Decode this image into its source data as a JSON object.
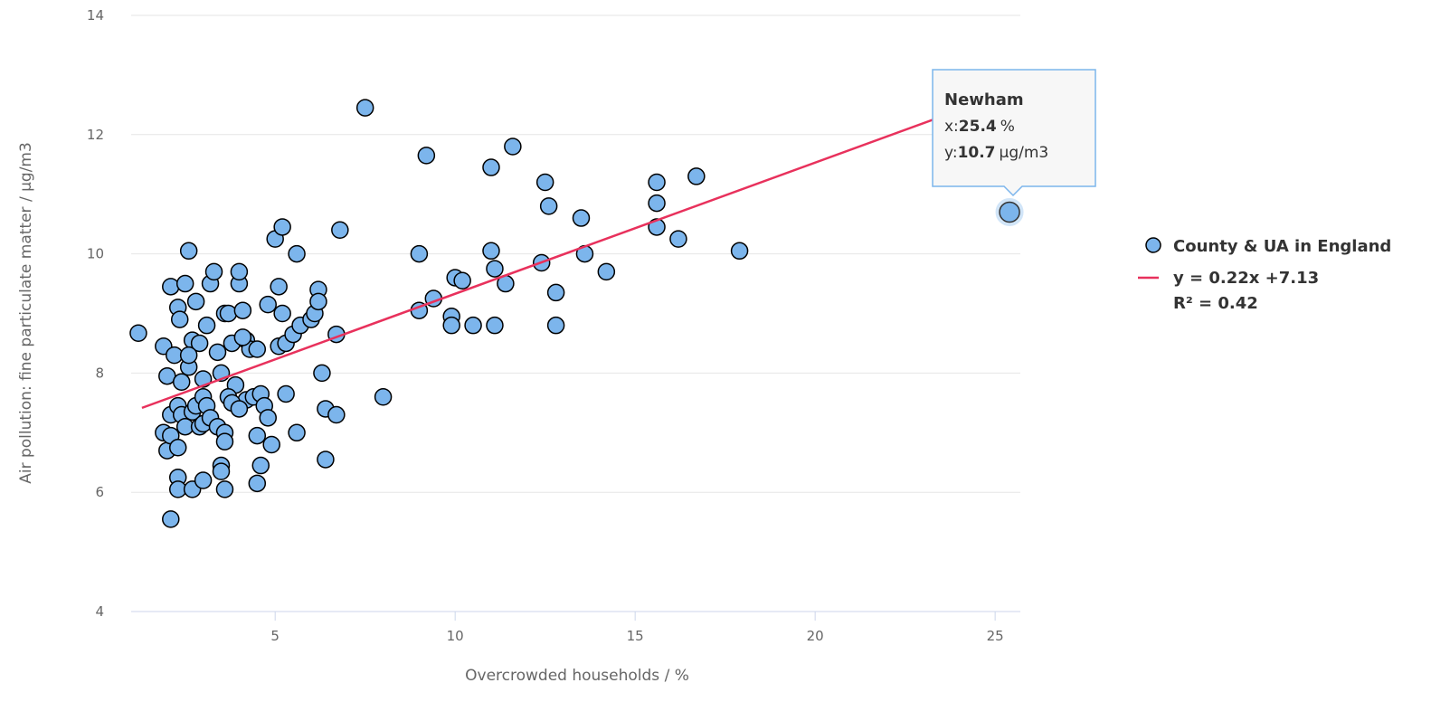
{
  "chart_data": {
    "type": "scatter",
    "xlabel": "Overcrowded households / %",
    "ylabel": "Air pollution: fine particulate matter / µg/m3",
    "xlim": [
      1.0,
      25.7
    ],
    "ylim": [
      4,
      14
    ],
    "x_ticks": [
      5,
      10,
      15,
      20,
      25
    ],
    "y_ticks": [
      4,
      6,
      8,
      10,
      12,
      14
    ],
    "grid": "horizontal",
    "legend_position": "right",
    "colors": {
      "point_fill": "#7cb5ec",
      "point_stroke": "#000000",
      "trend_line": "#e8315c",
      "grid": "#e6e6e6",
      "axis_line": "#ccd6eb",
      "tooltip_border": "#7cb5ec"
    },
    "series": [
      {
        "name": "County & UA in England",
        "points": [
          [
            1.2,
            8.67
          ],
          [
            1.9,
            8.45
          ],
          [
            2.0,
            7.95
          ],
          [
            2.1,
            9.45
          ],
          [
            2.2,
            8.3
          ],
          [
            2.3,
            9.1
          ],
          [
            2.35,
            8.9
          ],
          [
            2.4,
            7.85
          ],
          [
            2.5,
            9.5
          ],
          [
            2.6,
            10.05
          ],
          [
            2.6,
            8.1
          ],
          [
            2.7,
            8.55
          ],
          [
            2.8,
            9.2
          ],
          [
            2.9,
            8.5
          ],
          [
            3.0,
            7.9
          ],
          [
            3.1,
            8.8
          ],
          [
            3.2,
            9.5
          ],
          [
            3.3,
            9.7
          ],
          [
            3.4,
            8.35
          ],
          [
            3.5,
            8.0
          ],
          [
            3.6,
            9.0
          ],
          [
            3.7,
            9.0
          ],
          [
            3.8,
            8.5
          ],
          [
            3.9,
            7.8
          ],
          [
            4.0,
            9.5
          ],
          [
            4.0,
            9.7
          ],
          [
            4.1,
            9.05
          ],
          [
            4.2,
            8.55
          ],
          [
            4.3,
            8.4
          ],
          [
            4.5,
            8.4
          ],
          [
            4.1,
            8.6
          ],
          [
            4.2,
            7.55
          ],
          [
            4.4,
            7.6
          ],
          [
            4.6,
            7.65
          ],
          [
            4.7,
            7.45
          ],
          [
            4.8,
            7.25
          ],
          [
            4.5,
            6.95
          ],
          [
            4.6,
            6.45
          ],
          [
            4.5,
            6.15
          ],
          [
            4.9,
            6.8
          ],
          [
            4.8,
            9.15
          ],
          [
            5.0,
            10.25
          ],
          [
            5.1,
            8.45
          ],
          [
            5.2,
            10.45
          ],
          [
            5.1,
            9.45
          ],
          [
            5.2,
            9.0
          ],
          [
            5.3,
            8.5
          ],
          [
            5.5,
            8.65
          ],
          [
            5.6,
            10.0
          ],
          [
            5.7,
            8.8
          ],
          [
            5.3,
            7.65
          ],
          [
            5.6,
            7.0
          ],
          [
            6.0,
            8.9
          ],
          [
            6.1,
            9.0
          ],
          [
            6.2,
            9.4
          ],
          [
            6.2,
            9.2
          ],
          [
            6.3,
            8.0
          ],
          [
            6.4,
            7.4
          ],
          [
            6.4,
            6.55
          ],
          [
            6.7,
            8.65
          ],
          [
            6.8,
            10.4
          ],
          [
            6.7,
            7.3
          ],
          [
            1.9,
            7.0
          ],
          [
            2.0,
            6.7
          ],
          [
            2.1,
            6.95
          ],
          [
            2.1,
            7.3
          ],
          [
            2.3,
            7.45
          ],
          [
            2.3,
            6.75
          ],
          [
            2.4,
            7.3
          ],
          [
            2.5,
            7.1
          ],
          [
            2.6,
            8.3
          ],
          [
            2.7,
            7.35
          ],
          [
            2.8,
            7.45
          ],
          [
            2.9,
            7.1
          ],
          [
            3.0,
            7.6
          ],
          [
            3.0,
            7.15
          ],
          [
            3.1,
            7.45
          ],
          [
            3.2,
            7.25
          ],
          [
            3.4,
            7.1
          ],
          [
            3.6,
            7.0
          ],
          [
            3.6,
            6.85
          ],
          [
            3.5,
            6.45
          ],
          [
            3.5,
            6.35
          ],
          [
            2.3,
            6.25
          ],
          [
            2.3,
            6.05
          ],
          [
            2.7,
            6.05
          ],
          [
            3.0,
            6.2
          ],
          [
            3.6,
            6.05
          ],
          [
            2.1,
            5.55
          ],
          [
            3.7,
            7.6
          ],
          [
            3.8,
            7.5
          ],
          [
            4.0,
            7.4
          ],
          [
            7.5,
            12.45
          ],
          [
            8.0,
            7.6
          ],
          [
            9.0,
            10.0
          ],
          [
            9.0,
            9.05
          ],
          [
            9.2,
            11.65
          ],
          [
            9.4,
            9.25
          ],
          [
            9.9,
            8.95
          ],
          [
            9.9,
            8.8
          ],
          [
            10.0,
            9.6
          ],
          [
            10.2,
            9.55
          ],
          [
            10.5,
            8.8
          ],
          [
            11.0,
            10.05
          ],
          [
            11.0,
            11.45
          ],
          [
            11.1,
            9.75
          ],
          [
            11.1,
            8.8
          ],
          [
            11.4,
            9.5
          ],
          [
            11.6,
            11.8
          ],
          [
            12.4,
            9.85
          ],
          [
            12.5,
            11.2
          ],
          [
            12.6,
            10.8
          ],
          [
            12.8,
            8.8
          ],
          [
            12.8,
            9.35
          ],
          [
            13.5,
            10.6
          ],
          [
            13.6,
            10.0
          ],
          [
            14.2,
            9.7
          ],
          [
            15.6,
            11.2
          ],
          [
            15.6,
            10.85
          ],
          [
            15.6,
            10.45
          ],
          [
            16.2,
            10.25
          ],
          [
            16.7,
            11.3
          ],
          [
            17.9,
            10.05
          ]
        ]
      }
    ],
    "trend": {
      "slope": 0.22,
      "intercept": 7.13,
      "x_range": [
        1.3,
        25.0
      ],
      "legend_line1": "y = 0.22x +7.13",
      "legend_line2": "R² = 0.42"
    },
    "highlight": {
      "name": "Newham",
      "x": 25.4,
      "y": 10.7,
      "x_prefix": "x:",
      "x_value_text": "25.4",
      "x_unit": "%",
      "y_prefix": "y:",
      "y_value_text": "10.7",
      "y_unit": "µg/m3"
    }
  }
}
